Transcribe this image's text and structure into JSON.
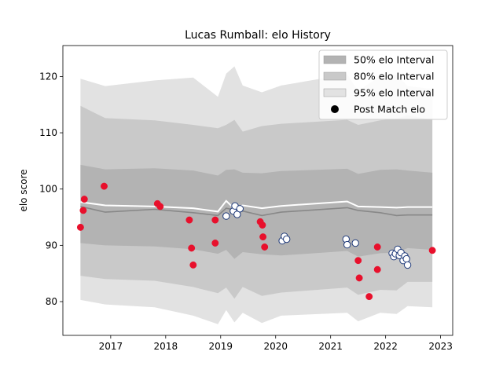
{
  "chart_data": {
    "type": "scatter",
    "title": "Lucas Rumball: elo History",
    "xlabel": "",
    "ylabel": "elo score",
    "xlim": [
      2016.13,
      2023.22
    ],
    "ylim": [
      74,
      125.5
    ],
    "x_ticks": [
      2017,
      2018,
      2019,
      2020,
      2021,
      2022,
      2023
    ],
    "y_ticks": [
      80,
      90,
      100,
      110,
      120
    ],
    "grid": false,
    "legend_placement": "top-right",
    "legend": [
      {
        "label": "50% elo Interval",
        "color": "#b3b3b3",
        "kind": "patch"
      },
      {
        "label": "80% elo Interval",
        "color": "#c9c9c9",
        "kind": "patch"
      },
      {
        "label": "95% elo Interval",
        "color": "#e2e2e2",
        "kind": "patch"
      },
      {
        "label": "Post Match elo",
        "color": "#000000",
        "kind": "marker"
      }
    ],
    "colors": {
      "band95": "#e2e2e2",
      "band80": "#c9c9c9",
      "band50": "#b3b3b3",
      "median_line": "#888888",
      "mean_line": "#ffffff",
      "red_point": "#e8102c",
      "blue_point_edge": "#1f3a7a",
      "blue_point_fill": "#ffffff"
    },
    "bands": {
      "x": [
        2016.45,
        2016.9,
        2017.8,
        2018.5,
        2018.95,
        2019.1,
        2019.25,
        2019.4,
        2019.75,
        2020.1,
        2021.3,
        2021.5,
        2021.9,
        2022.2,
        2022.4,
        2022.85
      ],
      "q025": [
        80.3,
        79.5,
        79.0,
        77.5,
        76.0,
        78.5,
        76.3,
        78.0,
        76.2,
        77.5,
        78.0,
        76.5,
        78.0,
        77.8,
        79.2,
        79.0
      ],
      "q10": [
        84.6,
        84.0,
        83.7,
        82.6,
        81.5,
        82.5,
        80.5,
        82.6,
        81.0,
        81.6,
        82.5,
        81.2,
        82.1,
        82.0,
        83.5,
        83.5
      ],
      "q25": [
        90.4,
        90.0,
        89.8,
        89.3,
        88.5,
        89.2,
        87.6,
        88.8,
        88.4,
        88.2,
        89.0,
        88.0,
        88.6,
        88.7,
        89.5,
        89.2
      ],
      "q50": [
        96.9,
        95.9,
        96.4,
        95.8,
        95.3,
        96.6,
        96.3,
        96.1,
        95.3,
        95.9,
        96.7,
        96.2,
        95.8,
        95.3,
        95.4,
        95.4
      ],
      "mean": [
        97.7,
        97.1,
        96.9,
        96.6,
        96.0,
        97.9,
        96.5,
        97.1,
        96.6,
        97.0,
        97.8,
        96.9,
        96.8,
        96.7,
        96.8,
        96.8
      ],
      "q75": [
        104.3,
        103.5,
        103.7,
        103.3,
        102.4,
        103.4,
        103.5,
        102.9,
        102.8,
        103.2,
        103.6,
        102.7,
        103.4,
        103.5,
        103.3,
        102.9
      ],
      "q90": [
        114.8,
        112.6,
        112.2,
        111.4,
        110.8,
        111.4,
        112.3,
        110.2,
        111.2,
        111.6,
        112.3,
        111.4,
        112.2,
        112.5,
        113.1,
        112.3
      ],
      "q975": [
        119.6,
        118.3,
        119.3,
        119.8,
        116.4,
        120.5,
        121.8,
        118.4,
        117.2,
        118.4,
        120.4,
        117.4,
        120.1,
        120.3,
        118.3,
        117.8
      ]
    },
    "series": [
      {
        "marker": "red",
        "points": [
          [
            2016.45,
            93.2
          ],
          [
            2016.5,
            96.2
          ],
          [
            2016.52,
            98.2
          ],
          [
            2016.88,
            100.5
          ],
          [
            2017.85,
            97.4
          ],
          [
            2017.9,
            96.9
          ],
          [
            2018.43,
            94.5
          ],
          [
            2018.47,
            89.5
          ],
          [
            2018.5,
            86.5
          ],
          [
            2018.9,
            94.5
          ],
          [
            2018.9,
            90.4
          ],
          [
            2019.72,
            94.2
          ],
          [
            2019.76,
            93.6
          ],
          [
            2019.77,
            91.5
          ],
          [
            2019.8,
            89.7
          ],
          [
            2021.5,
            87.3
          ],
          [
            2021.52,
            84.2
          ],
          [
            2021.7,
            80.9
          ],
          [
            2021.85,
            89.7
          ],
          [
            2021.85,
            85.7
          ],
          [
            2022.85,
            89.1
          ]
        ]
      },
      {
        "marker": "blue",
        "points": [
          [
            2019.1,
            95.2
          ],
          [
            2019.23,
            96.1
          ],
          [
            2019.26,
            97.0
          ],
          [
            2019.3,
            95.5
          ],
          [
            2019.35,
            96.5
          ],
          [
            2020.12,
            90.8
          ],
          [
            2020.16,
            91.6
          ],
          [
            2020.2,
            91.1
          ],
          [
            2021.28,
            91.1
          ],
          [
            2021.3,
            90.1
          ],
          [
            2021.45,
            90.4
          ],
          [
            2022.12,
            88.6
          ],
          [
            2022.15,
            88.0
          ],
          [
            2022.18,
            88.5
          ],
          [
            2022.22,
            89.3
          ],
          [
            2022.25,
            88.2
          ],
          [
            2022.28,
            88.7
          ],
          [
            2022.32,
            87.3
          ],
          [
            2022.35,
            88.1
          ],
          [
            2022.38,
            87.6
          ],
          [
            2022.4,
            86.5
          ]
        ]
      }
    ]
  }
}
